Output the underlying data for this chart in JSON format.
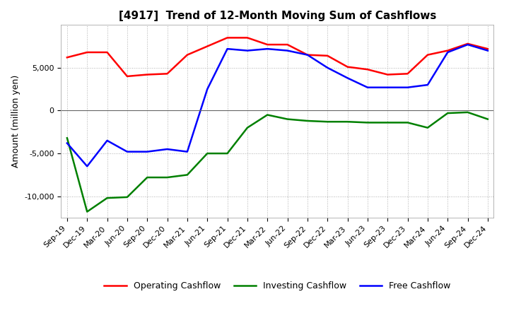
{
  "title": "[4917]  Trend of 12-Month Moving Sum of Cashflows",
  "ylabel": "Amount (million yen)",
  "x_labels": [
    "Sep-19",
    "Dec-19",
    "Mar-20",
    "Jun-20",
    "Sep-20",
    "Dec-20",
    "Mar-21",
    "Jun-21",
    "Sep-21",
    "Dec-21",
    "Mar-22",
    "Jun-22",
    "Sep-22",
    "Dec-22",
    "Mar-23",
    "Jun-23",
    "Sep-23",
    "Dec-23",
    "Mar-24",
    "Jun-24",
    "Sep-24",
    "Dec-24"
  ],
  "operating": [
    6200,
    6800,
    6800,
    4000,
    4200,
    4300,
    6500,
    7500,
    8500,
    8500,
    7700,
    7700,
    6500,
    6400,
    5100,
    4800,
    4200,
    4300,
    6500,
    7000,
    7800,
    7200
  ],
  "investing": [
    -3200,
    -11800,
    -10200,
    -10100,
    -7800,
    -7800,
    -7500,
    -5000,
    -5000,
    -2000,
    -500,
    -1000,
    -1200,
    -1300,
    -1300,
    -1400,
    -1400,
    -1400,
    -2000,
    -300,
    -200,
    -1000
  ],
  "free": [
    -3800,
    -6500,
    -3500,
    -4800,
    -4800,
    -4500,
    -4800,
    2500,
    7200,
    7000,
    7200,
    7000,
    6500,
    5000,
    3800,
    2700,
    2700,
    2700,
    3000,
    6800,
    7700,
    7000
  ],
  "operating_color": "#ff0000",
  "investing_color": "#008000",
  "free_color": "#0000ff",
  "ylim": [
    -12500,
    10000
  ],
  "yticks": [
    -10000,
    -5000,
    0,
    5000
  ],
  "background_color": "#ffffff",
  "grid_color": "#b0b0b0",
  "title_fontsize": 11,
  "axis_fontsize": 9,
  "tick_fontsize": 8,
  "legend_fontsize": 9
}
